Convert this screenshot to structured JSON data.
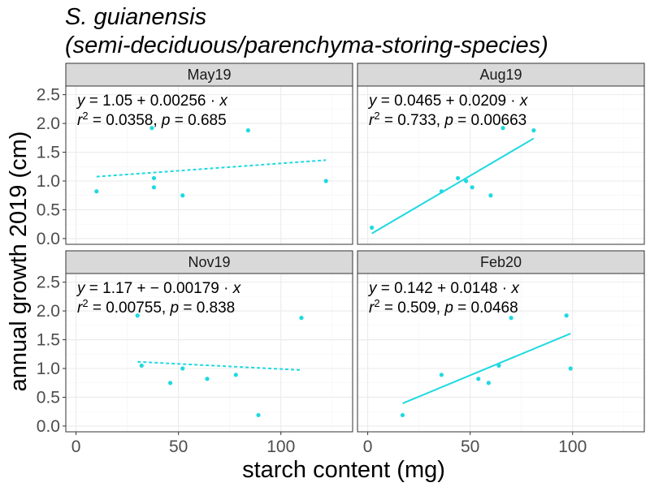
{
  "chart_data": {
    "type": "scatter",
    "title_line1": "S. guianensis",
    "title_line2": "(semi-deciduous/parenchyma-storing-species)",
    "xlabel": "starch content (mg)",
    "ylabel": "annual growth 2019 (cm)",
    "xlim": [
      -5,
      135
    ],
    "ylim": [
      -0.1,
      2.65
    ],
    "x_ticks": [
      0,
      50,
      100
    ],
    "x_tick_labels": [
      "0",
      "50",
      "100"
    ],
    "y_ticks": [
      0,
      0.5,
      1,
      1.5,
      2,
      2.5
    ],
    "y_tick_labels": [
      "0.0",
      "0.5",
      "1.0",
      "1.5",
      "2.0",
      "2.5"
    ],
    "point_color": "#1fd9e0",
    "panels": [
      {
        "name": "May19",
        "eq_a": "1.05",
        "eq_op": "+",
        "eq_b": "0.00256",
        "r2": "0.0358",
        "p": "0.685",
        "significant": false,
        "fit_x": [
          10,
          122
        ],
        "x": [
          10,
          37,
          38,
          38,
          52,
          84,
          122
        ],
        "y": [
          0.82,
          1.92,
          1.05,
          0.89,
          0.75,
          1.88,
          1.0
        ]
      },
      {
        "name": "Aug19",
        "eq_a": "0.0465",
        "eq_op": "+",
        "eq_b": "0.0209",
        "r2": "0.733",
        "p": "0.00663",
        "significant": true,
        "fit_x": [
          2,
          81
        ],
        "x": [
          2,
          36,
          44,
          48,
          51,
          60,
          66,
          81
        ],
        "y": [
          0.19,
          0.82,
          1.05,
          1.0,
          0.89,
          0.75,
          1.92,
          1.88
        ]
      },
      {
        "name": "Nov19",
        "eq_a": "1.17",
        "eq_op": "+ −",
        "eq_b": "0.00179",
        "r2": "0.00755",
        "p": "0.838",
        "significant": false,
        "fit_x": [
          30,
          110
        ],
        "x": [
          30,
          32,
          46,
          52,
          64,
          78,
          89,
          110
        ],
        "y": [
          1.92,
          1.05,
          0.75,
          1.0,
          0.82,
          0.89,
          0.19,
          1.88
        ]
      },
      {
        "name": "Feb20",
        "eq_a": "0.142",
        "eq_op": "+",
        "eq_b": "0.0148",
        "r2": "0.509",
        "p": "0.0468",
        "significant": true,
        "fit_x": [
          17,
          99
        ],
        "x": [
          17,
          36,
          54,
          59,
          64,
          70,
          97,
          99
        ],
        "y": [
          0.19,
          0.89,
          0.82,
          0.75,
          1.05,
          1.88,
          1.92,
          1.0
        ]
      }
    ]
  }
}
